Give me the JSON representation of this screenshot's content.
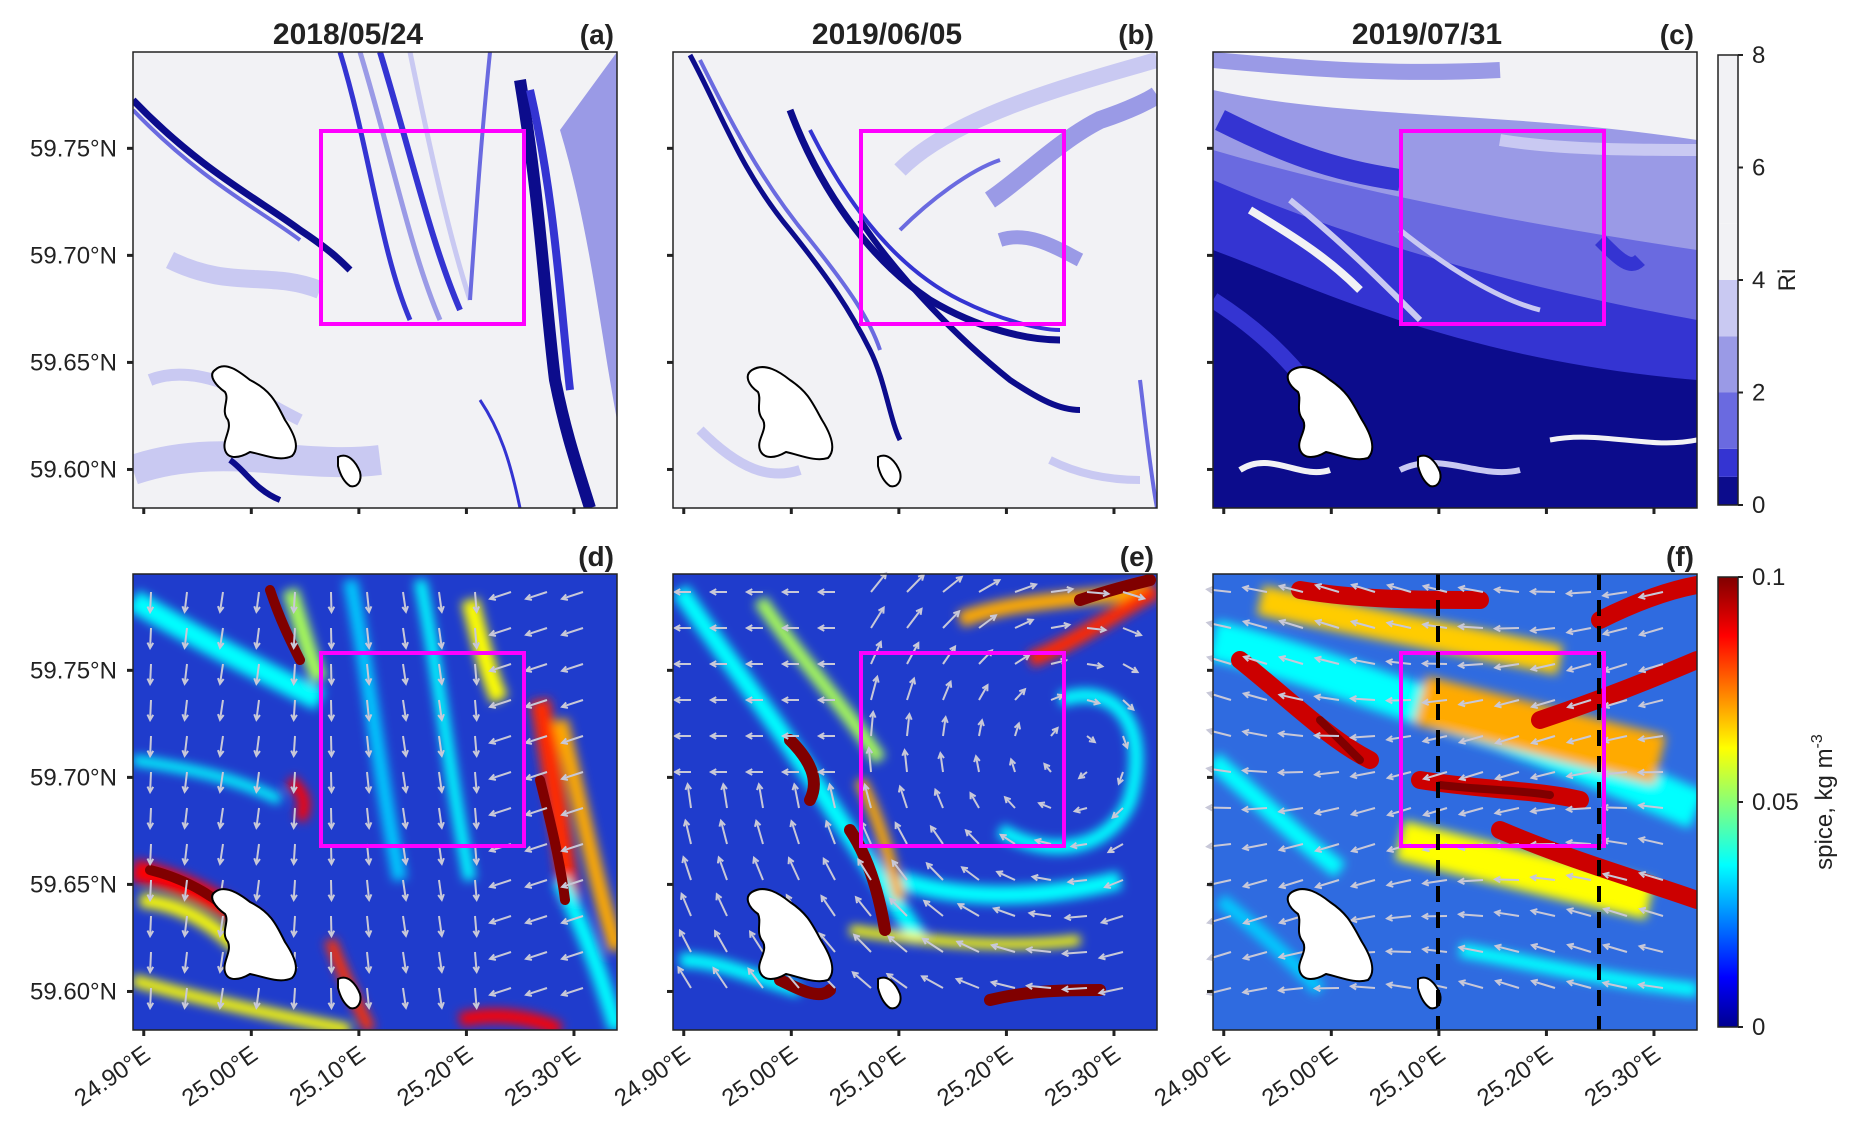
{
  "figure": {
    "dates": [
      "2018/05/24",
      "2019/06/05",
      "2019/07/31"
    ],
    "panel_labels": [
      "(a)",
      "(b)",
      "(c)",
      "(d)",
      "(e)",
      "(f)"
    ]
  },
  "chart_data": [
    {
      "type": "heatmap",
      "rows": 2,
      "columns": 3,
      "row_variables": [
        "Ri",
        "spice, kg m^-3"
      ],
      "xticks": [
        "24.90°E",
        "25.00°E",
        "25.10°E",
        "25.20°E",
        "25.30°E"
      ],
      "xtick_values": [
        24.9,
        25.0,
        25.1,
        25.2,
        25.3
      ],
      "yticks": [
        "59.60°N",
        "59.65°N",
        "59.70°N",
        "59.75°N"
      ],
      "ytick_values": [
        59.6,
        59.65,
        59.7,
        59.75
      ],
      "xlim": [
        24.89,
        25.34
      ],
      "ylim": [
        59.582,
        59.795
      ],
      "highlight_box": {
        "lon": [
          25.06,
          25.25
        ],
        "lat": [
          59.67,
          59.76
        ],
        "color": "#ff00ff"
      },
      "dashed_lines_panel_f": {
        "lon": [
          25.1,
          25.25
        ],
        "color": "#000000"
      },
      "arrows_color": "#c8c8d8",
      "grid": false
    },
    {
      "type": "colorbar",
      "label": "Ri",
      "range": [
        0,
        8
      ],
      "ticks": [
        "0",
        "2",
        "4",
        "6",
        "8"
      ],
      "tick_values": [
        0,
        2,
        4,
        6,
        8
      ],
      "levels": [
        0,
        0.5,
        1,
        2,
        3,
        4,
        5,
        8
      ],
      "colors": [
        "#0c0c8c",
        "#3434d2",
        "#6a6ae0",
        "#9a9ae6",
        "#c9c9f2",
        "#f2f2f5",
        "#f2f2f5"
      ]
    },
    {
      "type": "colorbar",
      "label": "spice, kg m",
      "label_superscript": "-3",
      "range": [
        0,
        0.1
      ],
      "ticks": [
        "0",
        "0.05",
        "0.1"
      ],
      "tick_values": [
        0,
        0.05,
        0.1
      ],
      "colormap": "jet"
    }
  ]
}
